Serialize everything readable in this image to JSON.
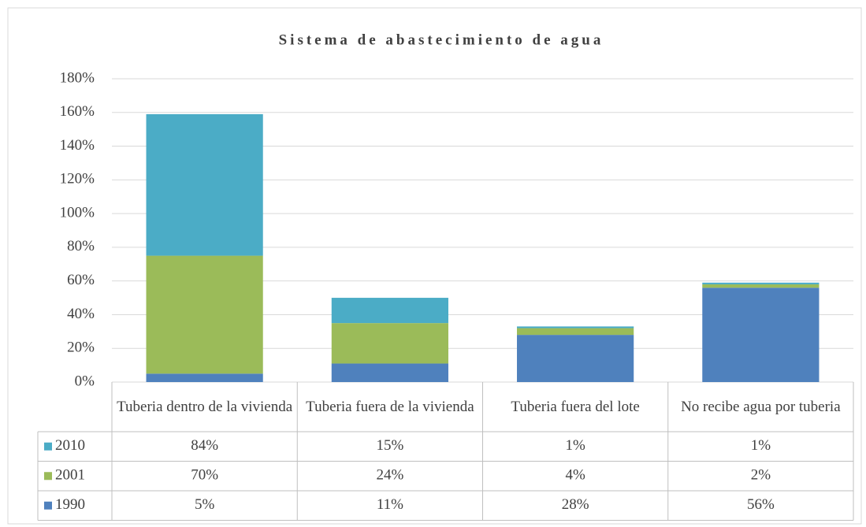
{
  "chart_data": {
    "type": "stacked-bar",
    "title": "Sistema de abastecimiento de agua",
    "categories": [
      "Tuberia dentro de la vivienda",
      "Tuberia fuera de la vivienda",
      "Tuberia fuera del lote",
      "No recibe agua por tuberia"
    ],
    "series": [
      {
        "name": "1990",
        "color": "#4f81bd",
        "values": [
          5,
          11,
          28,
          56
        ],
        "value_labels": [
          "5%",
          "11%",
          "28%",
          "56%"
        ]
      },
      {
        "name": "2001",
        "color": "#9bbb59",
        "values": [
          70,
          24,
          4,
          2
        ],
        "value_labels": [
          "70%",
          "24%",
          "4%",
          "2%"
        ]
      },
      {
        "name": "2010",
        "color": "#4bacc6",
        "values": [
          84,
          15,
          1,
          1
        ],
        "value_labels": [
          "84%",
          "15%",
          "1%",
          "1%"
        ]
      }
    ],
    "ylim": [
      0,
      180
    ],
    "yticks": [
      {
        "value": 0,
        "label": "0%"
      },
      {
        "value": 20,
        "label": "20%"
      },
      {
        "value": 40,
        "label": "40%"
      },
      {
        "value": 60,
        "label": "60%"
      },
      {
        "value": 80,
        "label": "80%"
      },
      {
        "value": 100,
        "label": "100%"
      },
      {
        "value": 120,
        "label": "120%"
      },
      {
        "value": 140,
        "label": "140%"
      },
      {
        "value": 160,
        "label": "160%"
      },
      {
        "value": 180,
        "label": "180%"
      }
    ],
    "grid": true
  }
}
